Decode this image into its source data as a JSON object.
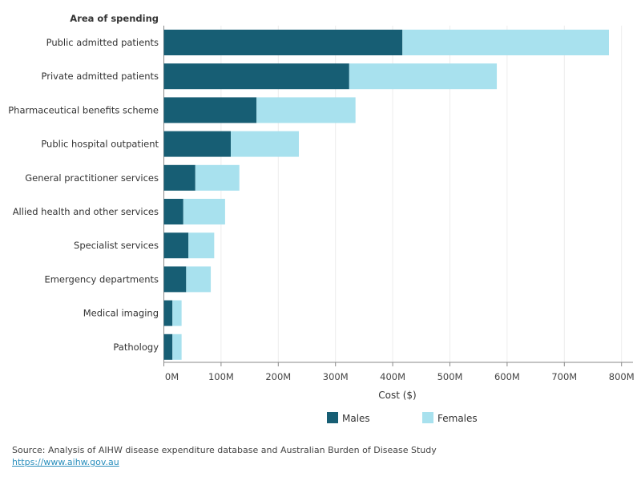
{
  "chart_data": {
    "type": "bar",
    "orientation": "horizontal",
    "stacked": true,
    "categories": [
      "Public admitted patients",
      "Private admitted patients",
      "Pharmaceutical benefits scheme",
      "Public hospital outpatient",
      "General practitioner services",
      "Allied health and other services",
      "Specialist services",
      "Emergency departments",
      "Medical imaging",
      "Pathology"
    ],
    "series": [
      {
        "name": "Males",
        "color": "#175e74",
        "values": [
          417,
          324,
          162,
          117,
          55,
          34,
          43,
          39,
          15,
          15
        ]
      },
      {
        "name": "Females",
        "color": "#a8e1ee",
        "values": [
          361,
          258,
          173,
          119,
          77,
          73,
          45,
          43,
          16,
          16
        ]
      }
    ],
    "ycategory_title": "Area of spending",
    "xlabel": "Cost ($)",
    "xlim": [
      0,
      820
    ],
    "xticks": [
      0,
      100,
      200,
      300,
      400,
      500,
      600,
      700,
      800
    ],
    "xtick_labels": [
      "0M",
      "100M",
      "200M",
      "300M",
      "400M",
      "500M",
      "600M",
      "700M",
      "800M"
    ],
    "unit": "million dollars",
    "grid": "vertical",
    "legend_position": "bottom"
  },
  "footer": {
    "source": "Source: Analysis of AIHW disease expenditure database and Australian Burden of Disease Study",
    "link": "https://www.aihw.gov.au"
  }
}
